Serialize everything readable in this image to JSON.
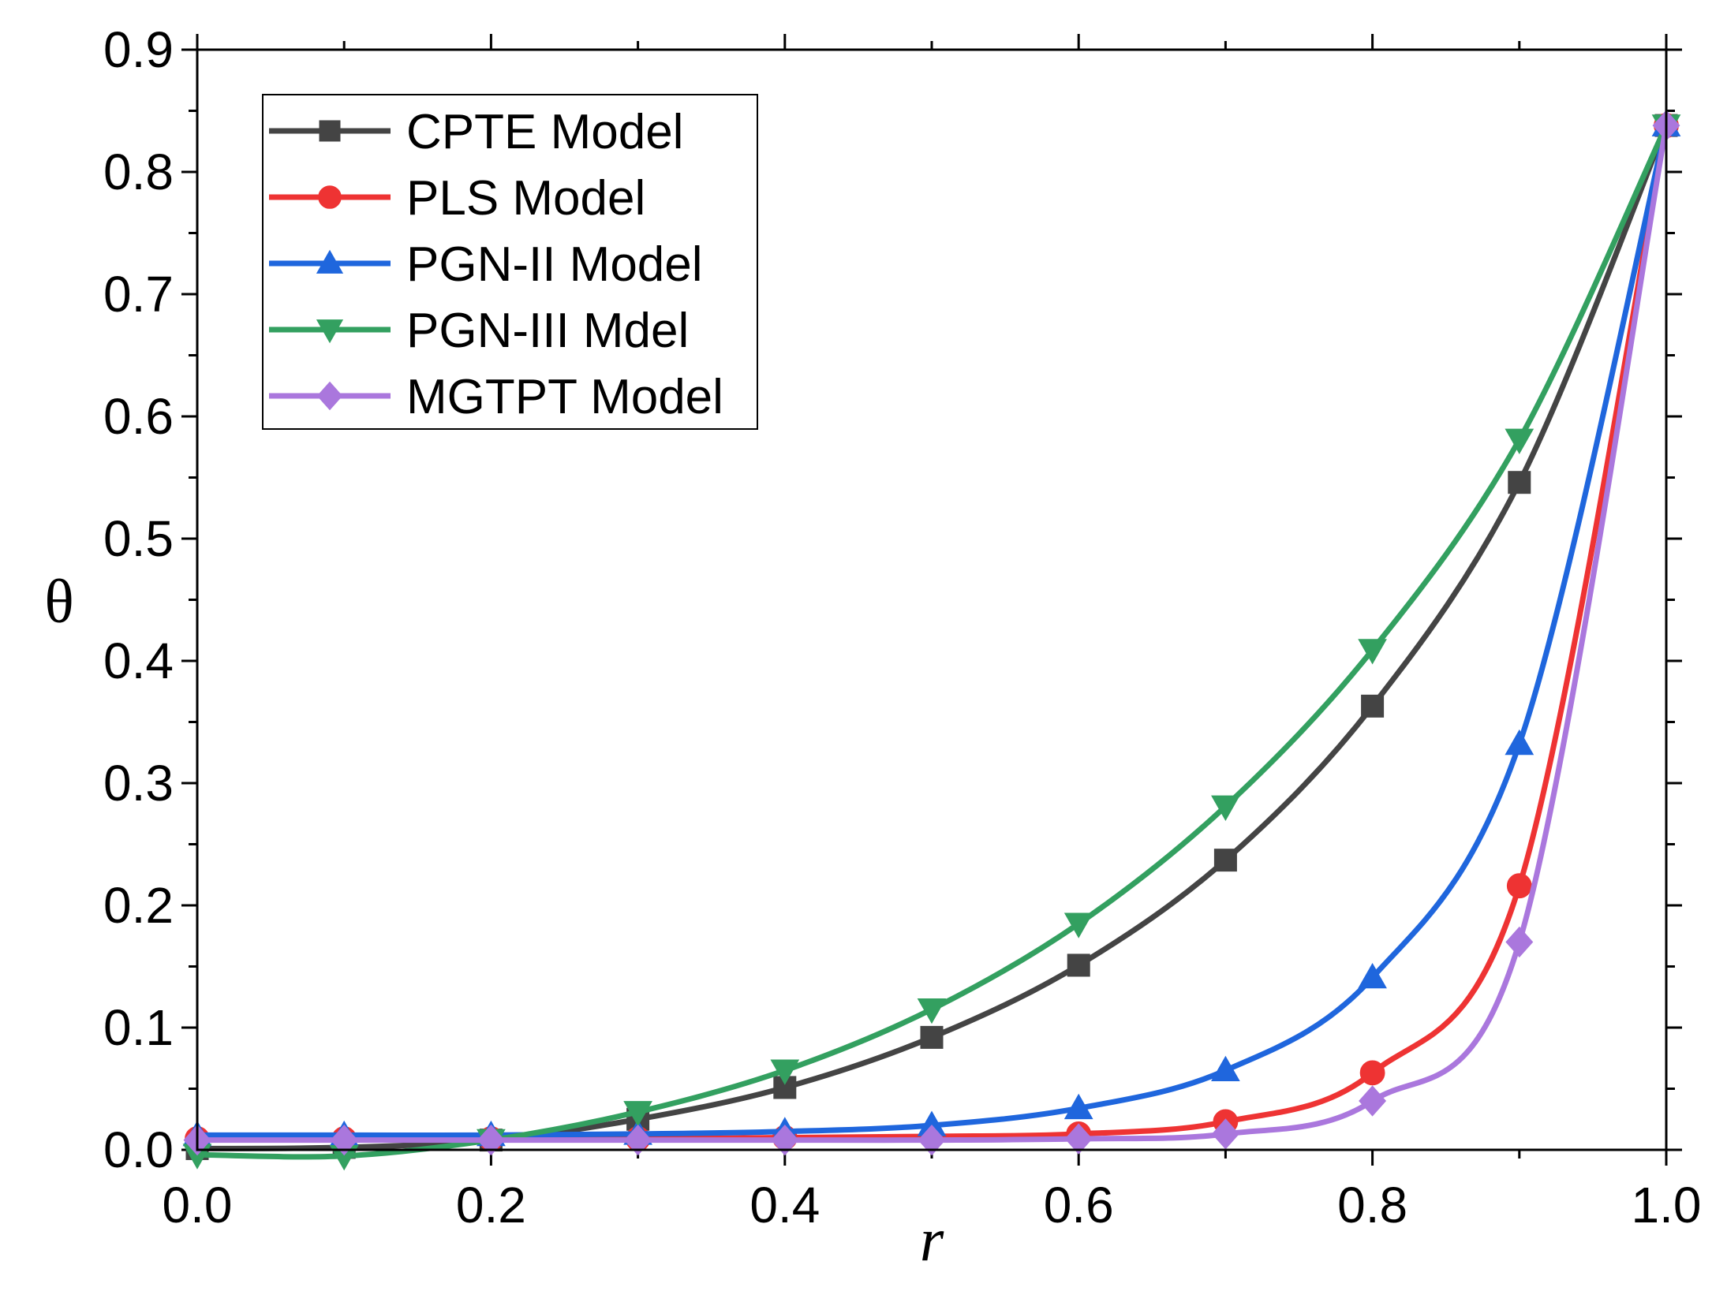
{
  "chart_data": {
    "type": "line",
    "title": "",
    "xlabel": "r",
    "ylabel": "θ",
    "xlim": [
      0.0,
      1.0
    ],
    "ylim": [
      0.0,
      0.9
    ],
    "x": [
      0.0,
      0.1,
      0.2,
      0.3,
      0.4,
      0.5,
      0.6,
      0.7,
      0.8,
      0.9,
      1.0
    ],
    "x_ticks": [
      "0.0",
      "0.2",
      "0.4",
      "0.6",
      "0.8",
      "1.0"
    ],
    "y_ticks": [
      "0.0",
      "0.1",
      "0.2",
      "0.3",
      "0.4",
      "0.5",
      "0.6",
      "0.7",
      "0.8",
      "0.9"
    ],
    "legend_position": "top-left",
    "series": [
      {
        "name": "CPTE Model",
        "color": "#444444",
        "marker": "square",
        "values": [
          0.001,
          0.002,
          0.008,
          0.025,
          0.051,
          0.092,
          0.151,
          0.237,
          0.363,
          0.546,
          0.838
        ]
      },
      {
        "name": "PLS Model",
        "color": "#ee3333",
        "marker": "circle",
        "values": [
          0.009,
          0.009,
          0.009,
          0.009,
          0.01,
          0.011,
          0.013,
          0.023,
          0.063,
          0.216,
          0.838
        ]
      },
      {
        "name": "PGN-II Model",
        "color": "#1f66dd",
        "marker": "triangle-up",
        "values": [
          0.012,
          0.012,
          0.012,
          0.013,
          0.015,
          0.02,
          0.034,
          0.065,
          0.141,
          0.332,
          0.838
        ]
      },
      {
        "name": "PGN-III Mdel",
        "color": "#33a060",
        "marker": "triangle-down",
        "values": [
          -0.004,
          -0.005,
          0.008,
          0.031,
          0.065,
          0.115,
          0.185,
          0.281,
          0.409,
          0.581,
          0.838
        ]
      },
      {
        "name": "MGTPT Model",
        "color": "#aa77dd",
        "marker": "diamond",
        "values": [
          0.008,
          0.008,
          0.008,
          0.008,
          0.008,
          0.008,
          0.009,
          0.013,
          0.04,
          0.17,
          0.838
        ]
      }
    ]
  }
}
